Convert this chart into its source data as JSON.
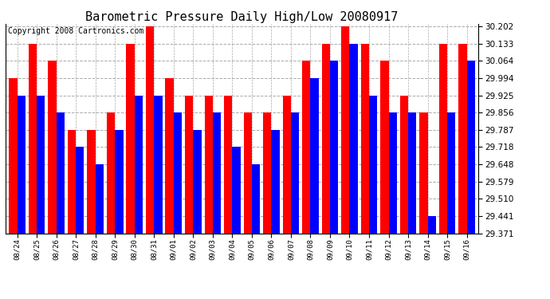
{
  "title": "Barometric Pressure Daily High/Low 20080917",
  "copyright": "Copyright 2008 Cartronics.com",
  "labels": [
    "08/24",
    "08/25",
    "08/26",
    "08/27",
    "08/28",
    "08/29",
    "08/30",
    "08/31",
    "09/01",
    "09/02",
    "09/03",
    "09/04",
    "09/05",
    "09/06",
    "09/07",
    "09/08",
    "09/09",
    "09/10",
    "09/11",
    "09/12",
    "09/13",
    "09/14",
    "09/15",
    "09/16"
  ],
  "highs": [
    29.994,
    30.133,
    30.064,
    29.787,
    29.787,
    29.856,
    30.133,
    30.202,
    29.994,
    29.925,
    29.925,
    29.925,
    29.856,
    29.856,
    29.925,
    30.064,
    30.133,
    30.202,
    30.133,
    30.064,
    29.925,
    29.856,
    30.133,
    30.133
  ],
  "lows": [
    29.925,
    29.925,
    29.856,
    29.718,
    29.648,
    29.787,
    29.925,
    29.925,
    29.856,
    29.787,
    29.856,
    29.718,
    29.648,
    29.787,
    29.856,
    29.994,
    30.064,
    30.133,
    29.925,
    29.856,
    29.856,
    29.441,
    29.856,
    30.064
  ],
  "ymin": 29.371,
  "ymax": 30.202,
  "yticks": [
    29.371,
    29.441,
    29.51,
    29.579,
    29.648,
    29.718,
    29.787,
    29.856,
    29.925,
    29.994,
    30.064,
    30.133,
    30.202
  ],
  "bar_width": 0.42,
  "high_color": "#ff0000",
  "low_color": "#0000ff",
  "bg_color": "#ffffff",
  "plot_bg_color": "#ffffff",
  "grid_color": "#aaaaaa",
  "title_fontsize": 11,
  "copyright_fontsize": 7
}
